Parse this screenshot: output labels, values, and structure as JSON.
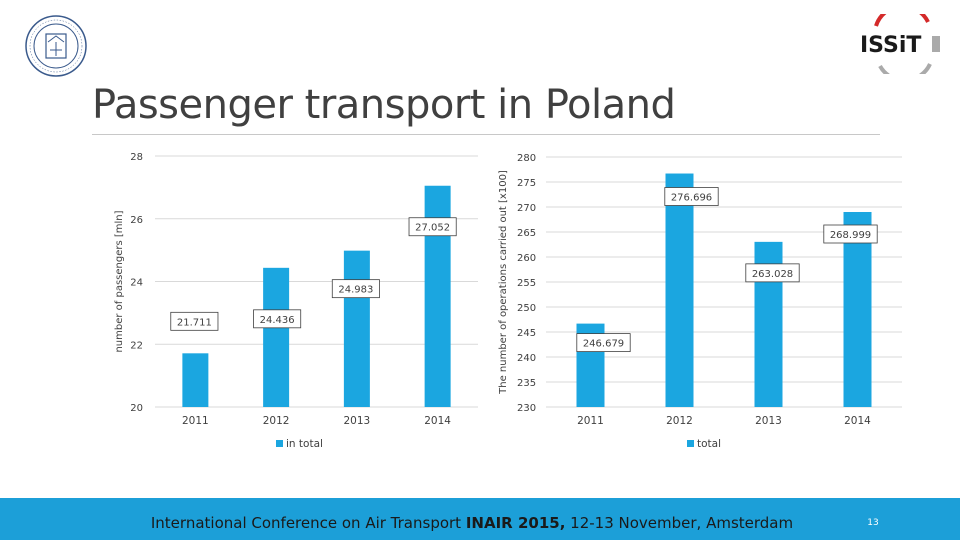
{
  "slide": {
    "title": "Passenger transport in Poland",
    "footer_prefix": "International Conference on Air Transport ",
    "footer_bold": "INAIR 2015,",
    "footer_suffix": " 12-13 November, Amsterdam",
    "page_number": "13",
    "logo_text": "ISSiT"
  },
  "colors": {
    "bar": "#1ba6e0",
    "footer": "#1c9fd8",
    "grid": "#d9d9d9",
    "text": "#404040"
  },
  "chart_data": [
    {
      "type": "bar",
      "categories": [
        "2011",
        "2012",
        "2013",
        "2014"
      ],
      "series": [
        {
          "name": "in total",
          "values": [
            21.711,
            24.436,
            24.983,
            27.052
          ]
        }
      ],
      "data_labels": [
        "21.711",
        "24.436",
        "24.983",
        "27.052"
      ],
      "ylabel": "number of passengers [mln]",
      "ylim": [
        20,
        28
      ],
      "yticks": [
        20,
        22,
        24,
        26,
        28
      ],
      "legend": "bottom"
    },
    {
      "type": "bar",
      "categories": [
        "2011",
        "2012",
        "2013",
        "2014"
      ],
      "series": [
        {
          "name": "total",
          "values": [
            246.679,
            276.696,
            263.028,
            268.999
          ]
        }
      ],
      "data_labels": [
        "246.679",
        "276.696",
        "263.028",
        "268.999"
      ],
      "ylabel": "The number of operations carried out [x100]",
      "ylim": [
        230,
        280
      ],
      "yticks": [
        230,
        235,
        240,
        245,
        250,
        255,
        260,
        265,
        270,
        275,
        280
      ],
      "legend": "bottom"
    }
  ]
}
